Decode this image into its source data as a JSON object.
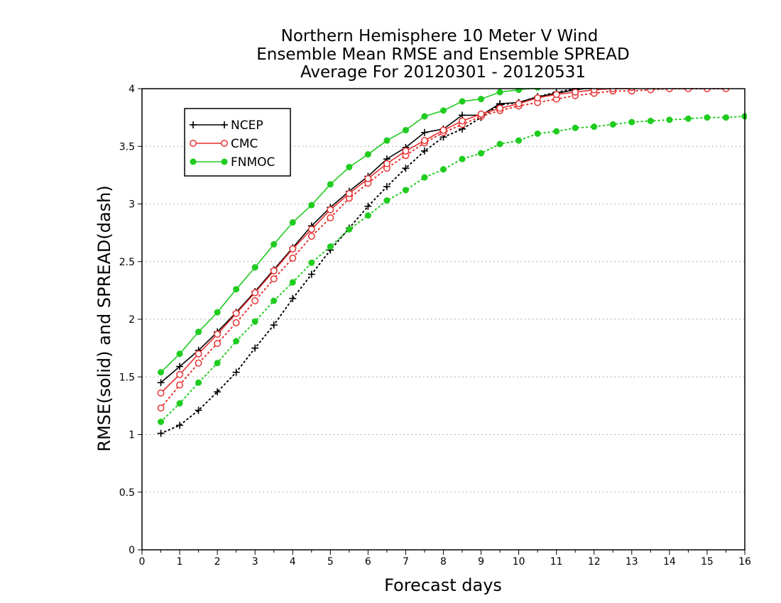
{
  "chart_data": {
    "type": "line",
    "title": [
      "Northern Hemisphere 10 Meter V Wind",
      "Ensemble Mean RMSE and Ensemble SPREAD",
      "Average For 20120301 - 20120531"
    ],
    "xlabel": "Forecast days",
    "ylabel": "RMSE(solid) and SPREAD(dash)",
    "xlim": [
      0,
      16
    ],
    "ylim": [
      0,
      4
    ],
    "xticks": [
      "0",
      "1",
      "2",
      "3",
      "4",
      "5",
      "6",
      "7",
      "8",
      "9",
      "10",
      "11",
      "12",
      "13",
      "14",
      "15",
      "16"
    ],
    "yticks": [
      "0",
      "0.5",
      "1",
      "1.5",
      "2",
      "2.5",
      "3",
      "3.5",
      "4"
    ],
    "grid": "horizontal dotted",
    "legend_position": "top-left",
    "legend": [
      "NCEP",
      "CMC",
      "FNMOC"
    ],
    "colors": {
      "NCEP": "#000000",
      "CMC": "#e83030",
      "FNMOC": "#1fcc1f"
    },
    "series": [
      {
        "name": "NCEP",
        "kind": "RMSE",
        "style": "solid",
        "marker": "plus",
        "color": "#000000",
        "x": [
          0.5,
          1,
          1.5,
          2,
          2.5,
          3,
          3.5,
          4,
          4.5,
          5,
          5.5,
          6,
          6.5,
          7,
          7.5,
          8,
          8.5,
          9,
          9.5,
          10,
          10.5,
          11,
          11.5,
          12
        ],
        "y": [
          1.45,
          1.59,
          1.73,
          1.89,
          2.06,
          2.24,
          2.43,
          2.62,
          2.81,
          2.97,
          3.11,
          3.24,
          3.39,
          3.49,
          3.62,
          3.65,
          3.77,
          3.77,
          3.87,
          3.88,
          3.93,
          3.96,
          3.99,
          4.01
        ]
      },
      {
        "name": "CMC",
        "kind": "RMSE",
        "style": "solid",
        "marker": "open-circle",
        "color": "#e83030",
        "x": [
          0.5,
          1,
          1.5,
          2,
          2.5,
          3,
          3.5,
          4,
          4.5,
          5,
          5.5,
          6,
          6.5,
          7,
          7.5,
          8,
          8.5,
          9,
          9.5,
          10,
          10.5,
          11,
          11.5,
          12,
          12.5,
          13
        ],
        "y": [
          1.36,
          1.52,
          1.7,
          1.87,
          2.05,
          2.23,
          2.42,
          2.61,
          2.78,
          2.95,
          3.09,
          3.22,
          3.35,
          3.46,
          3.55,
          3.64,
          3.72,
          3.78,
          3.83,
          3.87,
          3.92,
          3.95,
          3.97,
          3.99,
          4.0,
          4.01
        ]
      },
      {
        "name": "FNMOC",
        "kind": "RMSE",
        "style": "solid",
        "marker": "filled-circle",
        "color": "#1fcc1f",
        "x": [
          0.5,
          1,
          1.5,
          2,
          2.5,
          3,
          3.5,
          4,
          4.5,
          5,
          5.5,
          6,
          6.5,
          7,
          7.5,
          8,
          8.5,
          9,
          9.5,
          10,
          10.5
        ],
        "y": [
          1.54,
          1.7,
          1.89,
          2.06,
          2.26,
          2.45,
          2.65,
          2.84,
          2.99,
          3.17,
          3.32,
          3.43,
          3.55,
          3.64,
          3.76,
          3.81,
          3.89,
          3.91,
          3.97,
          3.99,
          4.01
        ]
      },
      {
        "name": "NCEP",
        "kind": "SPREAD",
        "style": "dotted",
        "marker": "plus",
        "color": "#000000",
        "x": [
          0.5,
          1,
          1.5,
          2,
          2.5,
          3,
          3.5,
          4,
          4.5,
          5,
          5.5,
          6,
          6.5,
          7,
          7.5,
          8,
          8.5,
          9,
          9.5,
          10,
          10.5,
          11,
          11.5,
          12
        ],
        "y": [
          1.01,
          1.08,
          1.21,
          1.37,
          1.54,
          1.75,
          1.95,
          2.18,
          2.39,
          2.6,
          2.79,
          2.98,
          3.15,
          3.31,
          3.46,
          3.58,
          3.65,
          3.75,
          3.86,
          3.88,
          3.93,
          3.97,
          4.0,
          4.02
        ]
      },
      {
        "name": "CMC",
        "kind": "SPREAD",
        "style": "dotted",
        "marker": "open-circle",
        "color": "#e83030",
        "x": [
          0.5,
          1,
          1.5,
          2,
          2.5,
          3,
          3.5,
          4,
          4.5,
          5,
          5.5,
          6,
          6.5,
          7,
          7.5,
          8,
          8.5,
          9,
          9.5,
          10,
          10.5,
          11,
          11.5,
          12,
          12.5,
          13,
          13.5,
          14,
          14.5,
          15,
          15.5
        ],
        "y": [
          1.23,
          1.43,
          1.62,
          1.79,
          1.97,
          2.16,
          2.35,
          2.53,
          2.72,
          2.88,
          3.05,
          3.18,
          3.31,
          3.42,
          3.53,
          3.62,
          3.69,
          3.76,
          3.81,
          3.85,
          3.88,
          3.91,
          3.94,
          3.96,
          3.98,
          3.98,
          3.99,
          4.0,
          4.0,
          4.0,
          4.0
        ]
      },
      {
        "name": "FNMOC",
        "kind": "SPREAD",
        "style": "dotted",
        "marker": "filled-circle",
        "color": "#1fcc1f",
        "x": [
          0.5,
          1,
          1.5,
          2,
          2.5,
          3,
          3.5,
          4,
          4.5,
          5,
          5.5,
          6,
          6.5,
          7,
          7.5,
          8,
          8.5,
          9,
          9.5,
          10,
          10.5,
          11,
          11.5,
          12,
          12.5,
          13,
          13.5,
          14,
          14.5,
          15,
          15.5,
          16
        ],
        "y": [
          1.11,
          1.27,
          1.45,
          1.62,
          1.81,
          1.98,
          2.16,
          2.32,
          2.49,
          2.63,
          2.78,
          2.9,
          3.03,
          3.12,
          3.23,
          3.3,
          3.39,
          3.44,
          3.52,
          3.55,
          3.61,
          3.63,
          3.66,
          3.67,
          3.69,
          3.71,
          3.72,
          3.73,
          3.74,
          3.75,
          3.75,
          3.76
        ]
      }
    ]
  }
}
